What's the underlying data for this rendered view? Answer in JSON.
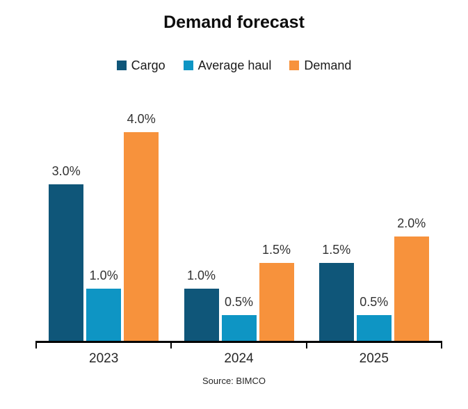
{
  "chart_data": {
    "type": "bar",
    "title": "Demand forecast",
    "categories": [
      "2023",
      "2024",
      "2025"
    ],
    "series": [
      {
        "name": "Cargo",
        "color": "#0F5679",
        "values": [
          3.0,
          1.0,
          1.5
        ],
        "labels": [
          "3.0%",
          "1.0%",
          "1.5%"
        ]
      },
      {
        "name": "Average haul",
        "color": "#0E95C4",
        "values": [
          1.0,
          0.5,
          0.5
        ],
        "labels": [
          "1.0%",
          "0.5%",
          "0.5%"
        ]
      },
      {
        "name": "Demand",
        "color": "#F7923C",
        "values": [
          4.0,
          1.5,
          2.0
        ],
        "labels": [
          "4.0%",
          "1.5%",
          "2.0%"
        ]
      }
    ],
    "ylim": [
      0,
      4.67
    ],
    "grid": false,
    "legend_position": "top",
    "data_labels": true,
    "axis_color": "#000000",
    "source": "Source: BIMCO"
  }
}
